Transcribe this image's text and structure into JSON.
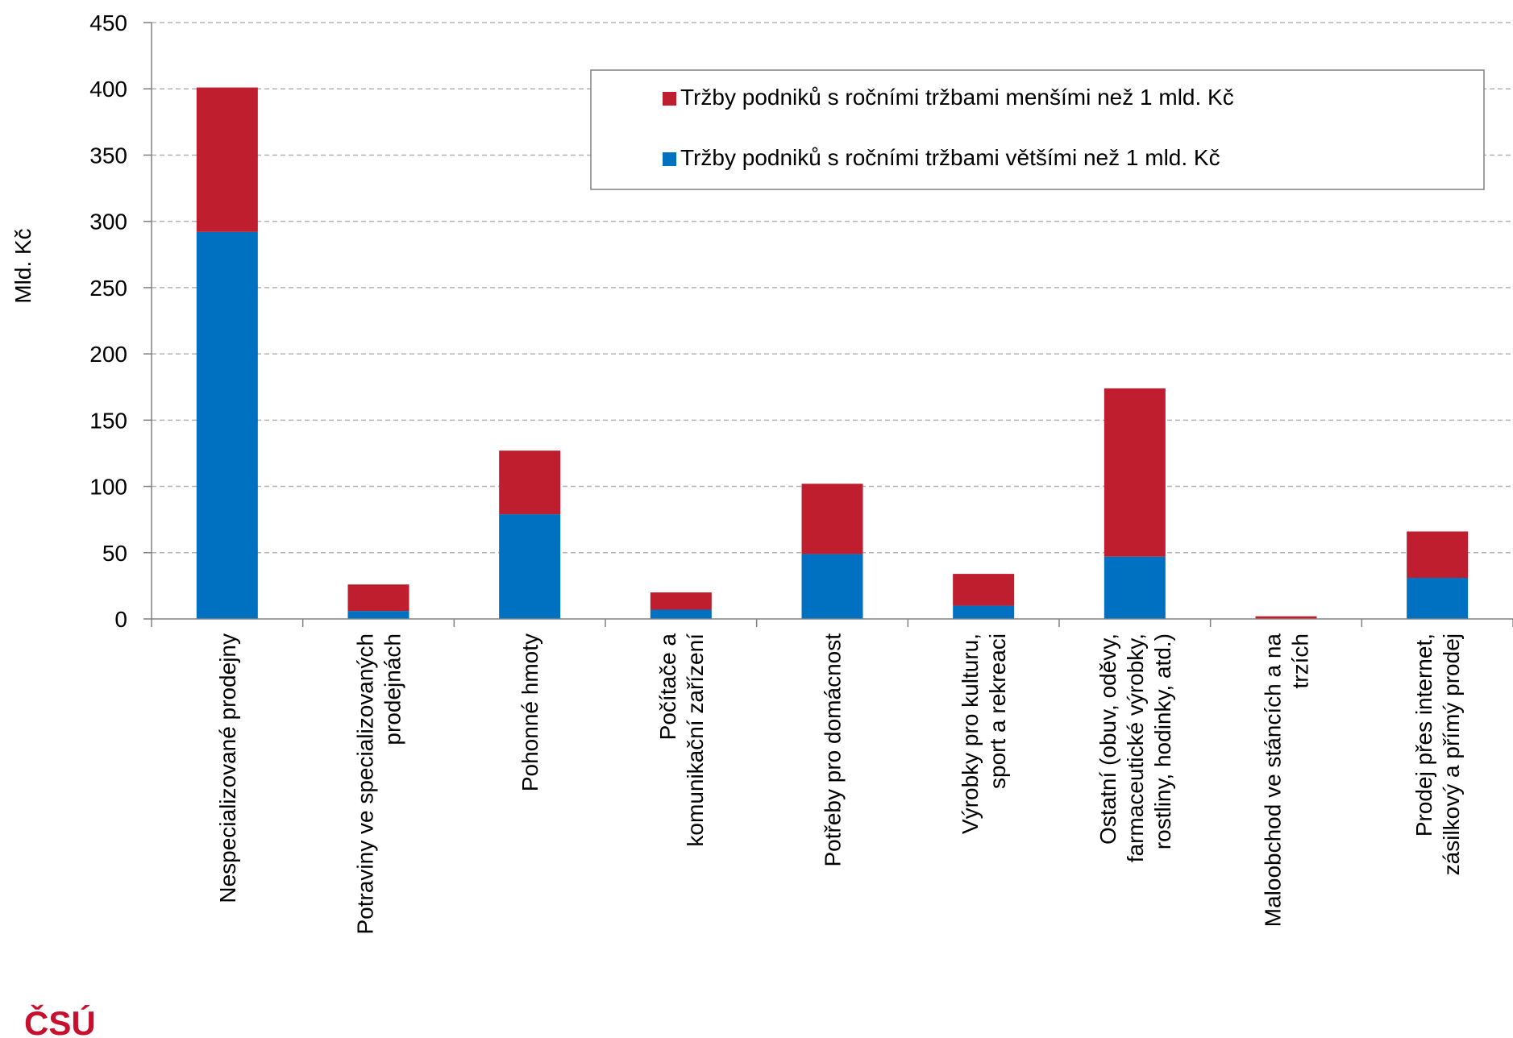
{
  "chart_data": {
    "type": "bar",
    "stacked": true,
    "ylabel": "Mld. Kč",
    "ylim": [
      0,
      450
    ],
    "yticks": [
      0,
      50,
      100,
      150,
      200,
      250,
      300,
      350,
      400,
      450
    ],
    "grid": true,
    "legend_position": "top-right",
    "categories": [
      [
        "Nespecializované prodejny"
      ],
      [
        "Potraviny ve specializovaných",
        "prodejnách"
      ],
      [
        "Pohonné hmoty"
      ],
      [
        "Počítače a",
        "komunikační zařízení"
      ],
      [
        "Potřeby pro domácnost"
      ],
      [
        "Výrobky pro kulturu,",
        "sport a rekreaci"
      ],
      [
        "Ostatní (obuv, oděvy,",
        "farmaceutické výrobky,",
        "rostliny, hodinky, atd.)"
      ],
      [
        "Maloobchod ve stáncích a na",
        "trzích"
      ],
      [
        "Prodej přes internet,",
        "zásilkový a přímý prodej"
      ]
    ],
    "series": [
      {
        "name": "Tržby podniků s ročními tržbami většími než 1 mld. Kč",
        "color": "#0070C0",
        "values": [
          292,
          6,
          79,
          7,
          49,
          10,
          47,
          0,
          31
        ]
      },
      {
        "name": "Tržby podniků s ročními tržbami menšími než 1 mld. Kč",
        "color": "#BE1E2D",
        "values": [
          109,
          20,
          48,
          13,
          53,
          24,
          127,
          2,
          35
        ]
      }
    ],
    "legend_order": [
      1,
      0
    ]
  },
  "logo": {
    "text": "ČSÚ",
    "color": "#C8102E"
  }
}
